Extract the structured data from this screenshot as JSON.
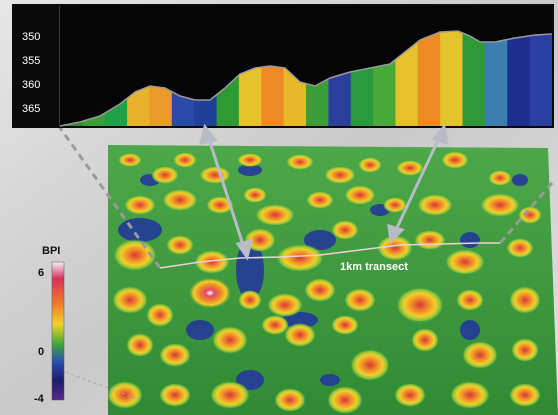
{
  "profile": {
    "y_ticks": [
      "350",
      "355",
      "360",
      "365"
    ],
    "bpi_colors_along_transect": [
      "#2f8a2f",
      "#3d9e36",
      "#1fa04a",
      "#e8b22a",
      "#e89a28",
      "#2a4aa8",
      "#1e3f9a",
      "#2f9a35",
      "#e6c22b",
      "#ef8a27",
      "#e6b82a",
      "#3a9d38",
      "#2d3f9c",
      "#2a9b3a",
      "#48a83a",
      "#e7c12b",
      "#f08a25",
      "#e4c42d",
      "#2f9838",
      "#3a7fb0",
      "#1d2f8c",
      "#2b3fa0"
    ]
  },
  "legend": {
    "title": "BPI",
    "max_label": "6",
    "mid_label": "0",
    "min_label": "-4"
  },
  "map": {
    "transect_label": "1km transect"
  },
  "colors": {
    "profile_background": "#0a0a0a",
    "map_base": "#3f9a3f",
    "high_bpi": "#d93a3a",
    "mid_high_bpi": "#f2c22a",
    "low_bpi": "#2b3f9e",
    "arrow": "#b8bcc6",
    "dashed_guide": "#9a9a9a"
  }
}
